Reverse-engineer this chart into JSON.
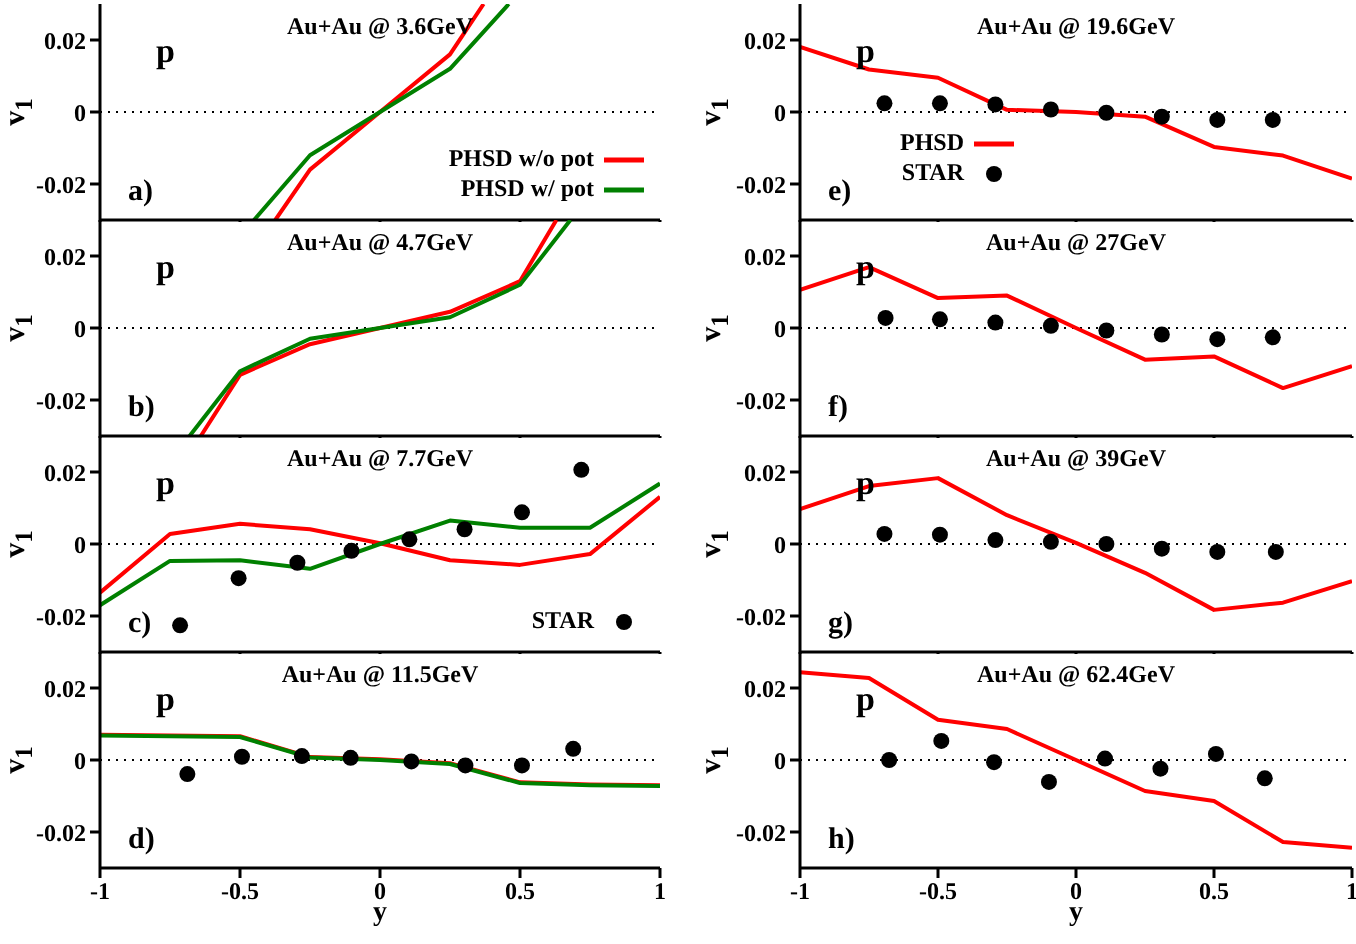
{
  "chart_data": [
    {
      "type": "line",
      "title": "Au+Au @ 3.6GeV",
      "ylabel": "v$_{1}$",
      "annotations": [
        "p",
        "a)"
      ],
      "xlim": [
        -1,
        1
      ],
      "xticks": [
        -1,
        -0.5,
        0,
        0.5,
        1
      ],
      "ylim": [
        -0.03,
        0.03
      ],
      "yticks": [
        -0.02,
        0,
        0.02
      ],
      "tick_labels": "y",
      "legend": "bottom right",
      "ref_lines": [
        {
          "axis": "y",
          "value": 0,
          "line_style": "dotted",
          "color": "#000000"
        }
      ],
      "series": [
        {
          "name": "PHSD w/o pot",
          "color": "#ff0000",
          "x": [
            -0.374,
            -0.25,
            0,
            0.25,
            0.37
          ],
          "values": [
            -0.03,
            -0.016,
            0,
            0.016,
            0.03
          ]
        },
        {
          "name": "PHSD w/  pot",
          "color": "#008000",
          "x": [
            -0.45,
            -0.25,
            0,
            0.25,
            0.46
          ],
          "values": [
            -0.03,
            -0.012,
            0,
            0.012,
            0.03
          ]
        }
      ]
    },
    {
      "type": "line",
      "title": "Au+Au @ 4.7GeV",
      "ylabel": "v$_{1}$",
      "annotations": [
        "p",
        "b)"
      ],
      "xlim": [
        -1,
        1
      ],
      "xticks": [
        -1,
        -0.5,
        0,
        0.5,
        1
      ],
      "ylim": [
        -0.03,
        0.03
      ],
      "yticks": [
        -0.02,
        0,
        0.02
      ],
      "tick_labels": "y",
      "ref_lines": [
        {
          "axis": "y",
          "value": 0,
          "line_style": "dotted",
          "color": "#000000"
        }
      ],
      "series": [
        {
          "color": "#ff0000",
          "x": [
            -0.64,
            -0.5,
            -0.25,
            0,
            0.25,
            0.5,
            0.63
          ],
          "values": [
            -0.03,
            -0.013,
            -0.0045,
            0,
            0.0045,
            0.013,
            0.03
          ]
        },
        {
          "color": "#008000",
          "x": [
            -0.68,
            -0.5,
            -0.25,
            0,
            0.25,
            0.5,
            0.68
          ],
          "values": [
            -0.03,
            -0.012,
            -0.003,
            0,
            0.003,
            0.012,
            0.03
          ]
        }
      ]
    },
    {
      "type": "line",
      "title": "Au+Au @ 7.7GeV",
      "ylabel": "v$_{1}$",
      "annotations": [
        "p",
        "c)"
      ],
      "xlim": [
        -1,
        1
      ],
      "xticks": [
        -1,
        -0.5,
        0,
        0.5,
        1
      ],
      "ylim": [
        -0.03,
        0.03
      ],
      "yticks": [
        -0.02,
        0,
        0.02
      ],
      "tick_labels": "y",
      "legend": "bottom right",
      "ref_lines": [
        {
          "axis": "y",
          "value": 0,
          "line_style": "dotted",
          "color": "#000000"
        }
      ],
      "series": [
        {
          "color": "#ff0000",
          "x": [
            -1,
            -0.75,
            -0.5,
            -0.25,
            0,
            0.25,
            0.5,
            0.75,
            1
          ],
          "values": [
            -0.0135,
            0.0028,
            0.0056,
            0.0041,
            0.0002,
            -0.0045,
            -0.0058,
            -0.0028,
            0.0131
          ]
        },
        {
          "color": "#008000",
          "x": [
            -1,
            -0.75,
            -0.5,
            -0.25,
            0,
            0.25,
            0.5,
            0.75,
            1
          ],
          "values": [
            -0.017,
            -0.0047,
            -0.0045,
            -0.0069,
            0,
            0.0065,
            0.0045,
            0.0045,
            0.0168
          ]
        },
        {
          "type": "scatter",
          "name": "STAR",
          "color": "#000000",
          "marker": "circle",
          "x": [
            -0.714,
            -0.505,
            -0.295,
            -0.102,
            0.105,
            0.302,
            0.507,
            0.719
          ],
          "values": [
            -0.0226,
            -0.0095,
            -0.0052,
            -0.0019,
            0.0013,
            0.0041,
            0.0088,
            0.0206
          ]
        }
      ]
    },
    {
      "type": "line",
      "title": "Au+Au @ 11.5GeV",
      "ylabel": "v$_{1}$",
      "xlabel": "y",
      "annotations": [
        "p",
        "d)"
      ],
      "xlim": [
        -1,
        1
      ],
      "xticks": [
        -1,
        -0.5,
        0,
        0.5,
        1
      ],
      "ylim": [
        -0.03,
        0.03
      ],
      "yticks": [
        -0.02,
        0,
        0.02
      ],
      "ref_lines": [
        {
          "axis": "y",
          "value": 0,
          "line_style": "dotted",
          "color": "#000000"
        }
      ],
      "series": [
        {
          "color": "#ff0000",
          "x": [
            -1,
            -0.5,
            -0.25,
            0,
            0.25,
            0.5,
            0.75,
            1
          ],
          "values": [
            0.007,
            0.0066,
            0.0008,
            0.0002,
            -0.0009,
            -0.0062,
            -0.0068,
            -0.007
          ]
        },
        {
          "color": "#008000",
          "x": [
            -1,
            -0.5,
            -0.25,
            0,
            0.25,
            0.5,
            0.75,
            1
          ],
          "values": [
            0.0068,
            0.0064,
            0.0007,
            0,
            -0.0011,
            -0.0064,
            -0.007,
            -0.0072
          ]
        },
        {
          "type": "scatter",
          "color": "#000000",
          "marker": "circle",
          "x": [
            -0.688,
            -0.493,
            -0.279,
            -0.105,
            0.112,
            0.305,
            0.507,
            0.69
          ],
          "values": [
            -0.0039,
            0.0009,
            0.0011,
            0.0006,
            -0.0004,
            -0.0015,
            -0.0015,
            0.0031
          ]
        }
      ]
    },
    {
      "type": "line",
      "title": "Au+Au @ 19.6GeV",
      "ylabel": "v$_{1}$",
      "annotations": [
        "p",
        "e)"
      ],
      "xlim": [
        -1,
        1
      ],
      "xticks": [
        -1,
        -0.5,
        0,
        0.5,
        1
      ],
      "ylim": [
        -0.03,
        0.03
      ],
      "yticks": [
        -0.02,
        0,
        0.02
      ],
      "tick_labels": "y",
      "legend": "bottom left",
      "ref_lines": [
        {
          "axis": "y",
          "value": 0,
          "line_style": "dotted",
          "color": "#000000"
        }
      ],
      "series": [
        {
          "name": "PHSD",
          "color": "#ff0000",
          "x": [
            -1,
            -0.75,
            -0.5,
            -0.25,
            0,
            0.25,
            0.5,
            0.75,
            1
          ],
          "values": [
            0.0181,
            0.0118,
            0.0095,
            0.0006,
            0,
            -0.0013,
            -0.0097,
            -0.0121,
            -0.0185
          ]
        },
        {
          "type": "scatter",
          "name": "STAR",
          "color": "#000000",
          "marker": "circle",
          "x": [
            -0.694,
            -0.493,
            -0.292,
            -0.091,
            0.11,
            0.311,
            0.512,
            0.713
          ],
          "values": [
            0.0024,
            0.0024,
            0.0021,
            0.0007,
            -0.0002,
            -0.0013,
            -0.0022,
            -0.0022
          ]
        }
      ]
    },
    {
      "type": "line",
      "title": "Au+Au @ 27GeV",
      "ylabel": "v$_{1}$",
      "annotations": [
        "p",
        "f)"
      ],
      "xlim": [
        -1,
        1
      ],
      "xticks": [
        -1,
        -0.5,
        0,
        0.5,
        1
      ],
      "ylim": [
        -0.03,
        0.03
      ],
      "yticks": [
        -0.02,
        0,
        0.02
      ],
      "tick_labels": "y",
      "ref_lines": [
        {
          "axis": "y",
          "value": 0,
          "line_style": "dotted",
          "color": "#000000"
        }
      ],
      "series": [
        {
          "color": "#ff0000",
          "x": [
            -1,
            -0.75,
            -0.5,
            -0.25,
            0,
            0.25,
            0.5,
            0.75,
            1
          ],
          "values": [
            0.0106,
            0.0169,
            0.0083,
            0.009,
            0,
            -0.0088,
            -0.0079,
            -0.0167,
            -0.0106
          ]
        },
        {
          "type": "scatter",
          "color": "#000000",
          "marker": "circle",
          "x": [
            -0.69,
            -0.493,
            -0.292,
            -0.091,
            0.11,
            0.311,
            0.512,
            0.713
          ],
          "values": [
            0.0028,
            0.0024,
            0.0015,
            0.0006,
            -0.0007,
            -0.0018,
            -0.0031,
            -0.0026
          ]
        }
      ]
    },
    {
      "type": "line",
      "title": "Au+Au @ 39GeV",
      "ylabel": "v$_{1}$",
      "annotations": [
        "p",
        "g)"
      ],
      "xlim": [
        -1,
        1
      ],
      "xticks": [
        -1,
        -0.5,
        0,
        0.5,
        1
      ],
      "ylim": [
        -0.03,
        0.03
      ],
      "yticks": [
        -0.02,
        0,
        0.02
      ],
      "tick_labels": "y",
      "ref_lines": [
        {
          "axis": "y",
          "value": 0,
          "line_style": "dotted",
          "color": "#000000"
        }
      ],
      "series": [
        {
          "color": "#ff0000",
          "x": [
            -1,
            -0.75,
            -0.5,
            -0.25,
            0,
            0.25,
            0.5,
            0.75,
            1
          ],
          "values": [
            0.0097,
            0.0161,
            0.0183,
            0.008,
            0.0003,
            -0.008,
            -0.0183,
            -0.0163,
            -0.0103
          ]
        },
        {
          "type": "scatter",
          "color": "#000000",
          "marker": "circle",
          "x": [
            -0.694,
            -0.493,
            -0.292,
            -0.091,
            0.11,
            0.311,
            0.512,
            0.724
          ],
          "values": [
            0.0028,
            0.0026,
            0.0011,
            0.0006,
            0,
            -0.0013,
            -0.0022,
            -0.0022
          ]
        }
      ]
    },
    {
      "type": "line",
      "title": "Au+Au @ 62.4GeV",
      "ylabel": "v$_{1}$",
      "xlabel": "y",
      "annotations": [
        "p",
        "h)"
      ],
      "xlim": [
        -1,
        1
      ],
      "xticks": [
        -1,
        -0.5,
        0,
        0.5,
        1
      ],
      "ylim": [
        -0.03,
        0.03
      ],
      "yticks": [
        -0.02,
        0,
        0.02
      ],
      "ref_lines": [
        {
          "axis": "y",
          "value": 0,
          "line_style": "dotted",
          "color": "#000000"
        }
      ],
      "series": [
        {
          "color": "#ff0000",
          "x": [
            -1,
            -0.75,
            -0.5,
            -0.25,
            0,
            0.25,
            0.5,
            0.75,
            1
          ],
          "values": [
            0.0244,
            0.0228,
            0.0112,
            0.0086,
            0,
            -0.0086,
            -0.0114,
            -0.0228,
            -0.0244
          ]
        },
        {
          "type": "scatter",
          "color": "#000000",
          "marker": "circle",
          "x": [
            -0.677,
            -0.488,
            -0.297,
            -0.098,
            0.105,
            0.306,
            0.507,
            0.684
          ],
          "values": [
            0,
            0.0053,
            -0.0006,
            -0.0061,
            0.0004,
            -0.0024,
            0.0017,
            -0.0051
          ]
        }
      ]
    }
  ]
}
